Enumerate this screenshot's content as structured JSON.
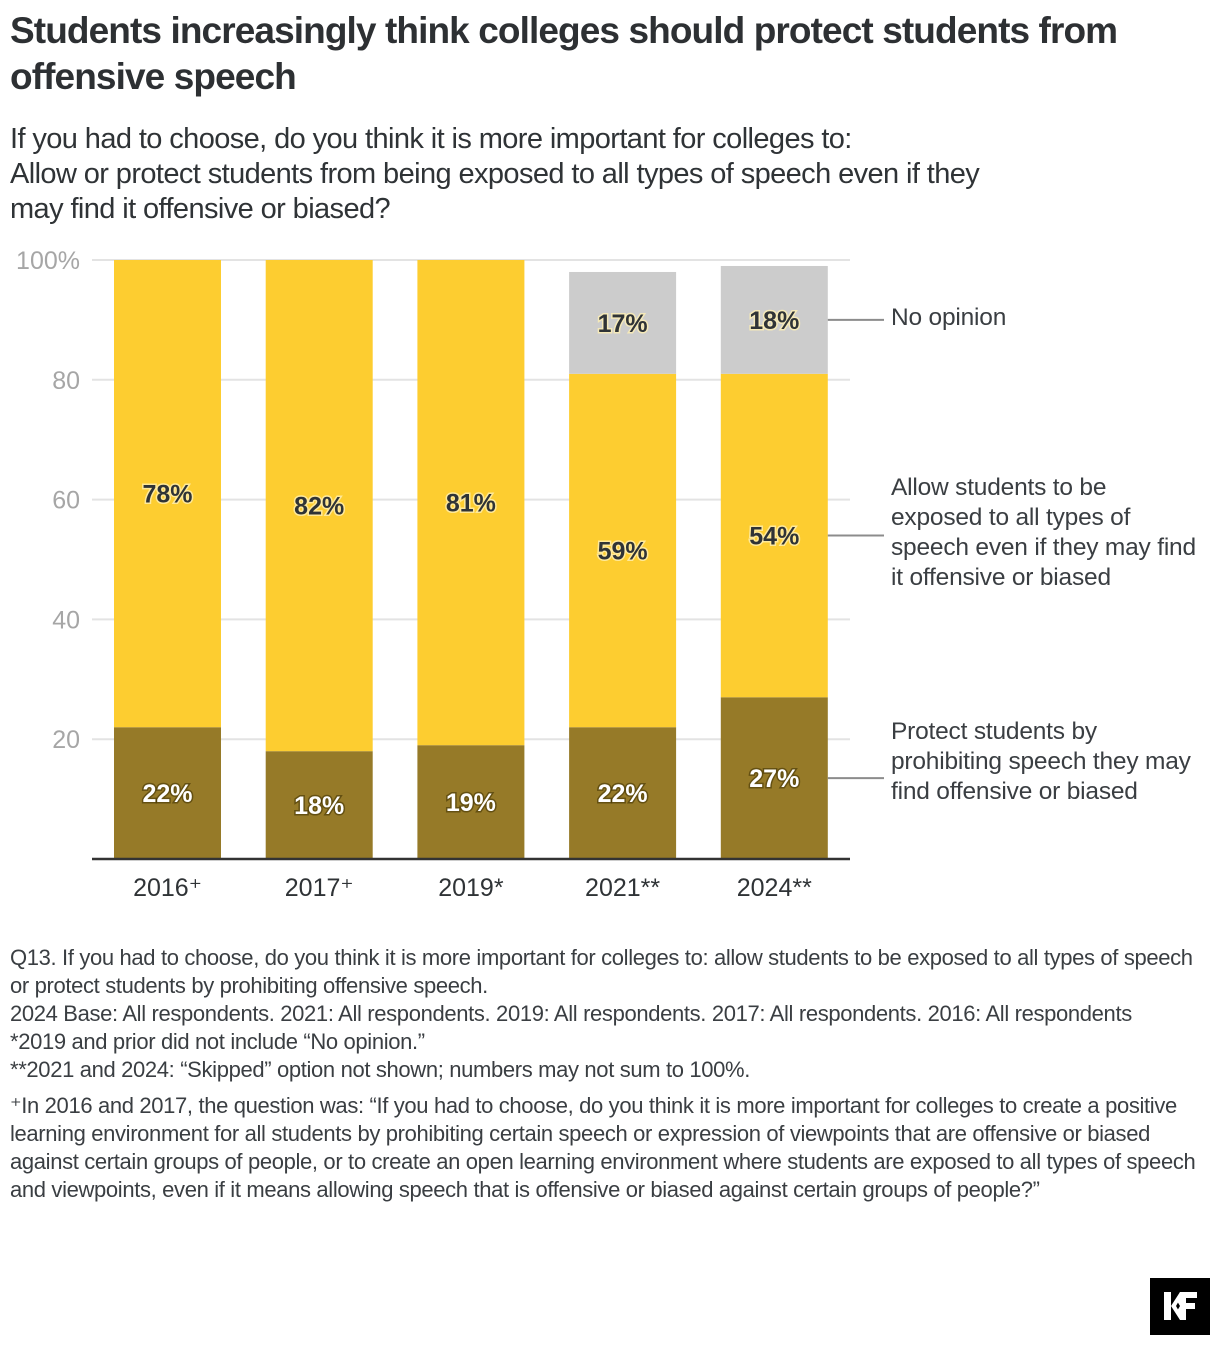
{
  "header": {
    "title": "Students increasingly think colleges should protect students from offensive speech",
    "subtitle_lines": [
      "If you had to choose, do you think it is more important for colleges to:",
      "Allow or protect students from being exposed to all types of speech even if they",
      "may find it offensive or biased?"
    ]
  },
  "chart_data": {
    "type": "bar",
    "stacked": true,
    "title": "Students increasingly think colleges should protect students from offensive speech",
    "xlabel": "",
    "ylabel": "",
    "ylim": [
      0,
      100
    ],
    "yticks": [
      20,
      40,
      60,
      80,
      100
    ],
    "ytick_labels": [
      "20",
      "40",
      "60",
      "80",
      "100%"
    ],
    "grid": true,
    "legend_placement": "right (direct labels)",
    "categories": [
      "2016⁺",
      "2017⁺",
      "2019*",
      "2021**",
      "2024**"
    ],
    "series": [
      {
        "name": "Protect students by prohibiting speech they may find offensive or biased",
        "color": "#967a28",
        "label_color": "#ffffff",
        "values": [
          22,
          18,
          19,
          22,
          27
        ],
        "labels": [
          "22%",
          "18%",
          "19%",
          "22%",
          "27%"
        ]
      },
      {
        "name": "Allow students to be exposed to all types of speech even if they may find it offensive or biased",
        "color": "#fdcd30",
        "label_color": "#2f3336",
        "values": [
          78,
          82,
          81,
          59,
          54
        ],
        "labels": [
          "78%",
          "82%",
          "81%",
          "59%",
          "54%"
        ]
      },
      {
        "name": "No opinion",
        "color": "#cccccc",
        "label_color": "#2f3336",
        "values": [
          null,
          null,
          null,
          17,
          18
        ],
        "labels": [
          "",
          "",
          "",
          "17%",
          "18%"
        ]
      }
    ],
    "colors": {
      "grid": "#e3e3e3",
      "axis": "#333333",
      "tick_label": "#a6a6a6",
      "leader_line": "#8c8c8c"
    }
  },
  "legend": {
    "no_opinion": "No opinion",
    "allow": "Allow students to be exposed to all types of speech even if they may find it offensive or biased",
    "protect": "Protect students by prohibiting speech they may find offensive or biased"
  },
  "notes": {
    "question": "Q13. If you had to choose, do you think it is more important for colleges to: allow students to be exposed to all types of speech or protect students by prohibiting offensive speech.",
    "base": "2024 Base: All respondents. 2021: All respondents. 2019: All respondents. 2017: All respondents. 2016: All respondents",
    "note_star": "*2019 and prior did not include “No opinion.”",
    "note_double_star": "**2021 and 2024: “Skipped” option not shown; numbers may not sum to 100%.",
    "note_plus": "⁺In 2016 and 2017, the question was: “If you had to choose, do you think it is more important for colleges to create a positive learning environment for all students by prohibiting certain speech or expression of viewpoints that are offensive or biased against certain groups of people, or to create an open learning environment where students are exposed to all types of speech and viewpoints, even if it means allowing speech that is offensive or biased against certain groups of people?”"
  },
  "logo": {
    "text": "KF",
    "name": "kff-logo"
  }
}
